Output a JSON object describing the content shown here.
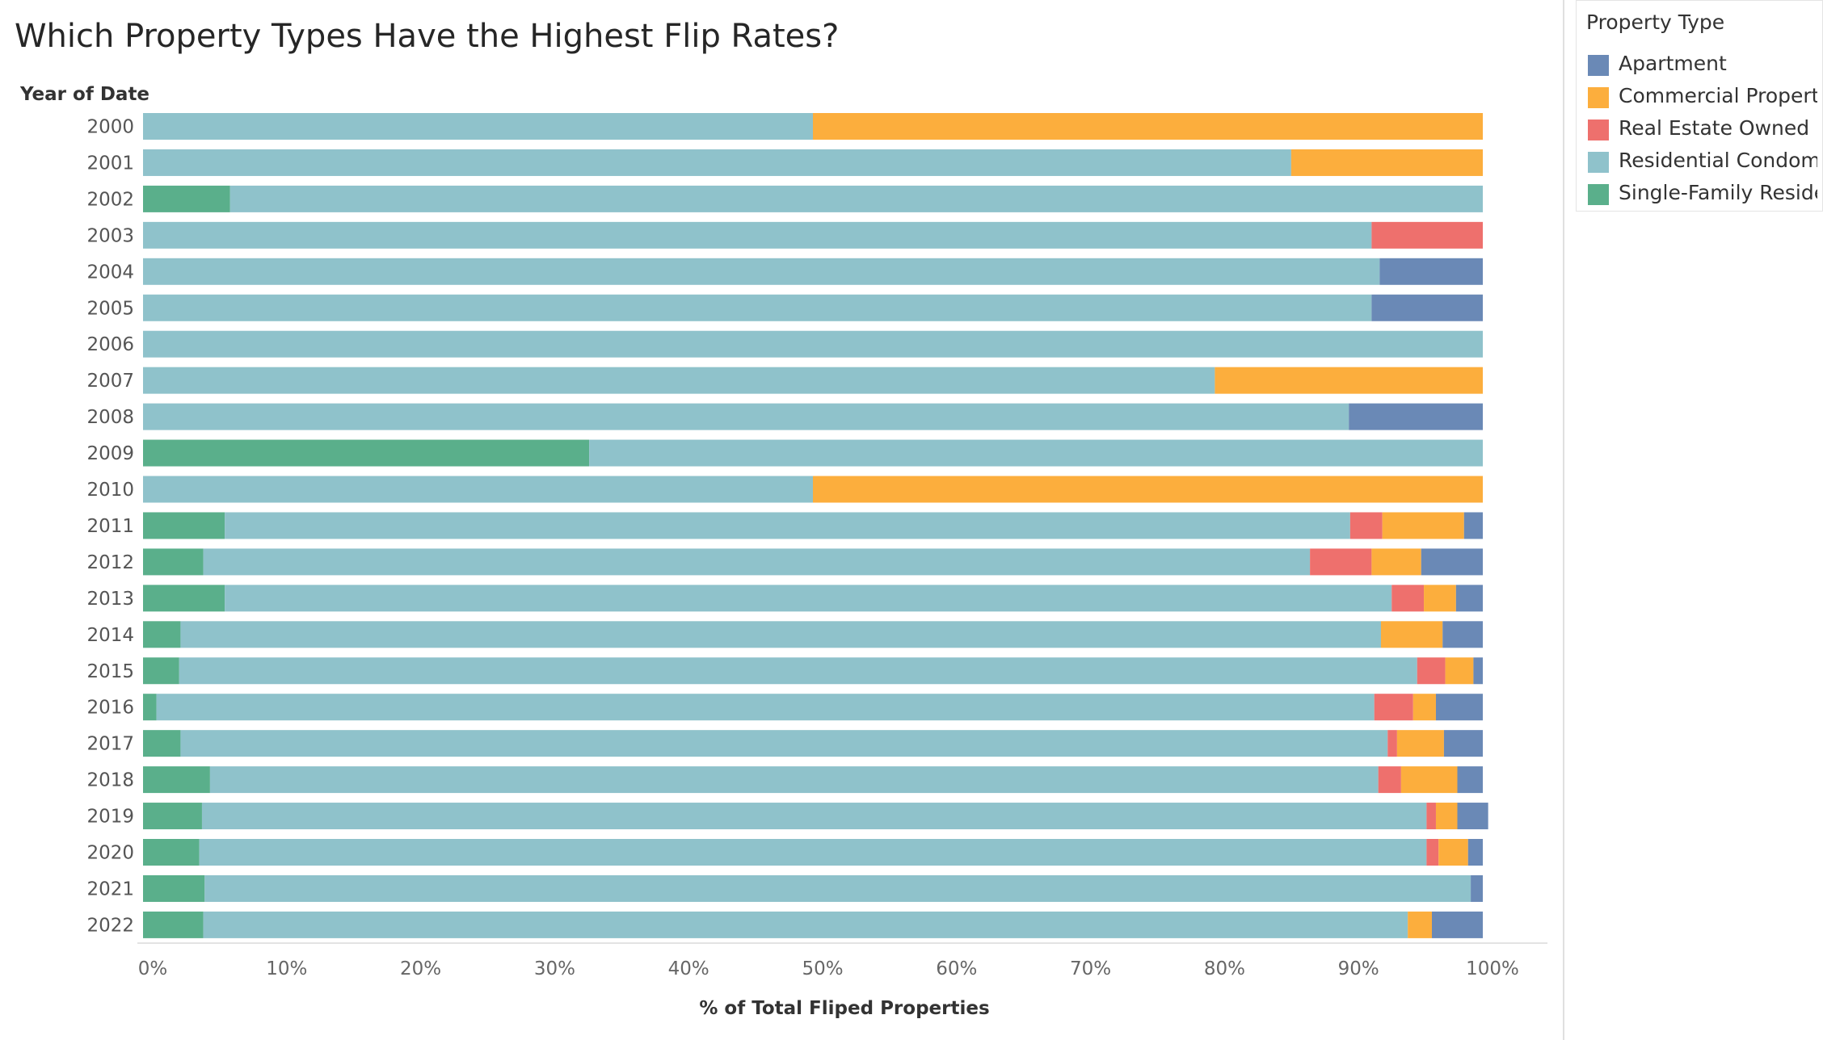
{
  "title": "Which Property Types Have the Highest Flip Rates?",
  "legend": {
    "title": "Property Type",
    "items": [
      {
        "label": "Apartment",
        "color": "#6a89b6"
      },
      {
        "label": "Commercial Property",
        "color": "#fcae3d"
      },
      {
        "label": "Real Estate Owned",
        "color": "#ee706d"
      },
      {
        "label": "Residential Condomi..",
        "color": "#8fc2cb"
      },
      {
        "label": "Single-Family Reside..",
        "color": "#5aaf8b"
      }
    ]
  },
  "chart_data": {
    "type": "bar",
    "orientation": "horizontal",
    "stacked": true,
    "row_header": "Year of Date",
    "categories": [
      "2000",
      "2001",
      "2002",
      "2003",
      "2004",
      "2005",
      "2006",
      "2007",
      "2008",
      "2009",
      "2010",
      "2011",
      "2012",
      "2013",
      "2014",
      "2015",
      "2016",
      "2017",
      "2018",
      "2019",
      "2020",
      "2021",
      "2022"
    ],
    "xlabel": "% of Total Fliped Properties",
    "xlim": [
      0,
      100
    ],
    "x_ticks": [
      "0%",
      "10%",
      "20%",
      "30%",
      "40%",
      "50%",
      "60%",
      "70%",
      "80%",
      "90%",
      "100%"
    ],
    "grid": false,
    "legend_position": "right",
    "series": [
      {
        "name": "Single-Family Reside..",
        "color": "#5aaf8b",
        "values": [
          0,
          0,
          6.5,
          0,
          0,
          0,
          0,
          0,
          0,
          33.3,
          0,
          6.1,
          4.5,
          6.1,
          2.8,
          2.7,
          1.0,
          2.8,
          5.0,
          4.4,
          4.2,
          4.6,
          4.5
        ]
      },
      {
        "name": "Residential Condomi..",
        "color": "#8fc2cb",
        "values": [
          50,
          85.7,
          93.5,
          91.7,
          92.3,
          91.7,
          100,
          80,
          90,
          66.7,
          50,
          84.0,
          82.6,
          87.1,
          89.6,
          92.4,
          90.9,
          90.1,
          87.2,
          91.4,
          91.6,
          94.5,
          89.9
        ]
      },
      {
        "name": "Real Estate Owned",
        "color": "#ee706d",
        "values": [
          0,
          0,
          0,
          8.3,
          0,
          0,
          0,
          0,
          0,
          0,
          0,
          2.4,
          4.6,
          2.4,
          0,
          2.1,
          2.9,
          0.7,
          1.7,
          0.7,
          0.9,
          0,
          0
        ]
      },
      {
        "name": "Commercial Property",
        "color": "#fcae3d",
        "values": [
          50,
          14.3,
          0,
          0,
          0,
          0,
          0,
          20,
          0,
          0,
          50,
          6.1,
          3.7,
          2.4,
          4.6,
          2.1,
          1.7,
          3.5,
          4.2,
          1.6,
          2.2,
          0,
          1.8
        ]
      },
      {
        "name": "Apartment",
        "color": "#6a89b6",
        "values": [
          0,
          0,
          0,
          0,
          7.7,
          8.3,
          0,
          0,
          10,
          0,
          0,
          1.4,
          4.6,
          2.0,
          3.0,
          0.7,
          3.5,
          2.9,
          1.9,
          2.3,
          1.1,
          0.9,
          3.8
        ]
      }
    ]
  }
}
